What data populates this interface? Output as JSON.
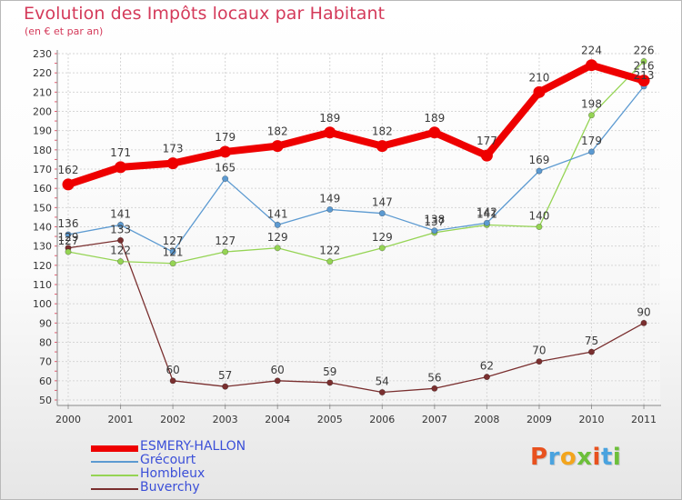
{
  "header": {
    "title": "Evolution des Impôts locaux par Habitant",
    "subtitle": "(en € et par an)"
  },
  "logo": {
    "text": "Proxiti",
    "colors": [
      "#e8511e",
      "#4aa3df",
      "#f3a51d",
      "#6cbf3a",
      "#e8511e",
      "#4aa3df",
      "#6cbf3a"
    ]
  },
  "chart_data": {
    "type": "line",
    "categories": [
      "2000",
      "2001",
      "2002",
      "2003",
      "2004",
      "2005",
      "2006",
      "2007",
      "2008",
      "2009",
      "2010",
      "2011"
    ],
    "ylim": [
      50,
      230
    ],
    "yticks": [
      50,
      60,
      70,
      80,
      90,
      100,
      110,
      120,
      130,
      140,
      150,
      160,
      170,
      180,
      190,
      200,
      210,
      220,
      230
    ],
    "grid": true,
    "legend_position": "bottom-left",
    "series": [
      {
        "name": "ESMERY-HALLON",
        "color": "#ee0000",
        "width": 8,
        "values": [
          162,
          171,
          173,
          179,
          182,
          189,
          182,
          189,
          177,
          210,
          224,
          216
        ],
        "labels": [
          "162",
          "171",
          "173",
          "179",
          "182",
          "189",
          "182",
          "189",
          "177",
          "210",
          "224",
          "216"
        ]
      },
      {
        "name": "Grécourt",
        "color": "#5c9ad1",
        "width": 1.3,
        "values": [
          136,
          141,
          127,
          165,
          141,
          149,
          147,
          138,
          142,
          169,
          179,
          213
        ],
        "labels": [
          "136",
          "141",
          "127",
          "165",
          "141",
          "149",
          "147",
          "138",
          "142",
          "169",
          "179",
          "213"
        ]
      },
      {
        "name": "Hombleux",
        "color": "#95d454",
        "width": 1.3,
        "values": [
          127,
          122,
          121,
          127,
          129,
          122,
          129,
          137,
          141,
          140,
          198,
          226
        ],
        "labels": [
          "127",
          "122",
          "121",
          "127",
          "129",
          "122",
          "129",
          "137",
          "141",
          "140",
          "198",
          "226"
        ]
      },
      {
        "name": "Buverchy",
        "color": "#7a2f2f",
        "width": 1.3,
        "values": [
          129,
          133,
          60,
          57,
          60,
          59,
          54,
          56,
          62,
          70,
          75,
          90
        ],
        "labels": [
          "129",
          "133",
          "60",
          "57",
          "60",
          "59",
          "54",
          "56",
          "62",
          "70",
          "75",
          "90"
        ]
      }
    ]
  }
}
